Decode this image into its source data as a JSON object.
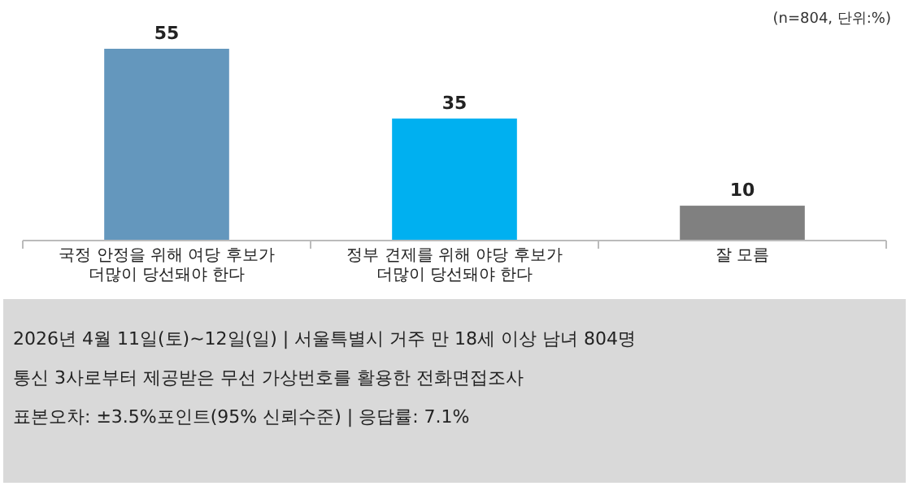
{
  "chart_data": {
    "type": "bar",
    "categories": [
      "국정 안정을 위해 여당 후보가\n더많이 당선돼야 한다",
      "정부 견제를 위해 야당 후보가\n더많이 당선돼야 한다",
      "잘 모름"
    ],
    "values": [
      55,
      35,
      10
    ],
    "colors": [
      "#6497bd",
      "#00b0f0",
      "#808080"
    ],
    "data_labels": true,
    "annotations": [
      "(n=804, 단위:%)",
      "2026년 4월 11일(토)~12일(일) | 서울특별시 거주 만 18세 이상 남녀 804명",
      "통신 3사로부터 제공받은 무선 가상번호를 활용한 전화면접조사",
      "표본오차: ±3.5%포인트(95% 신뢰수준) | 응답률: 7.1%"
    ]
  }
}
